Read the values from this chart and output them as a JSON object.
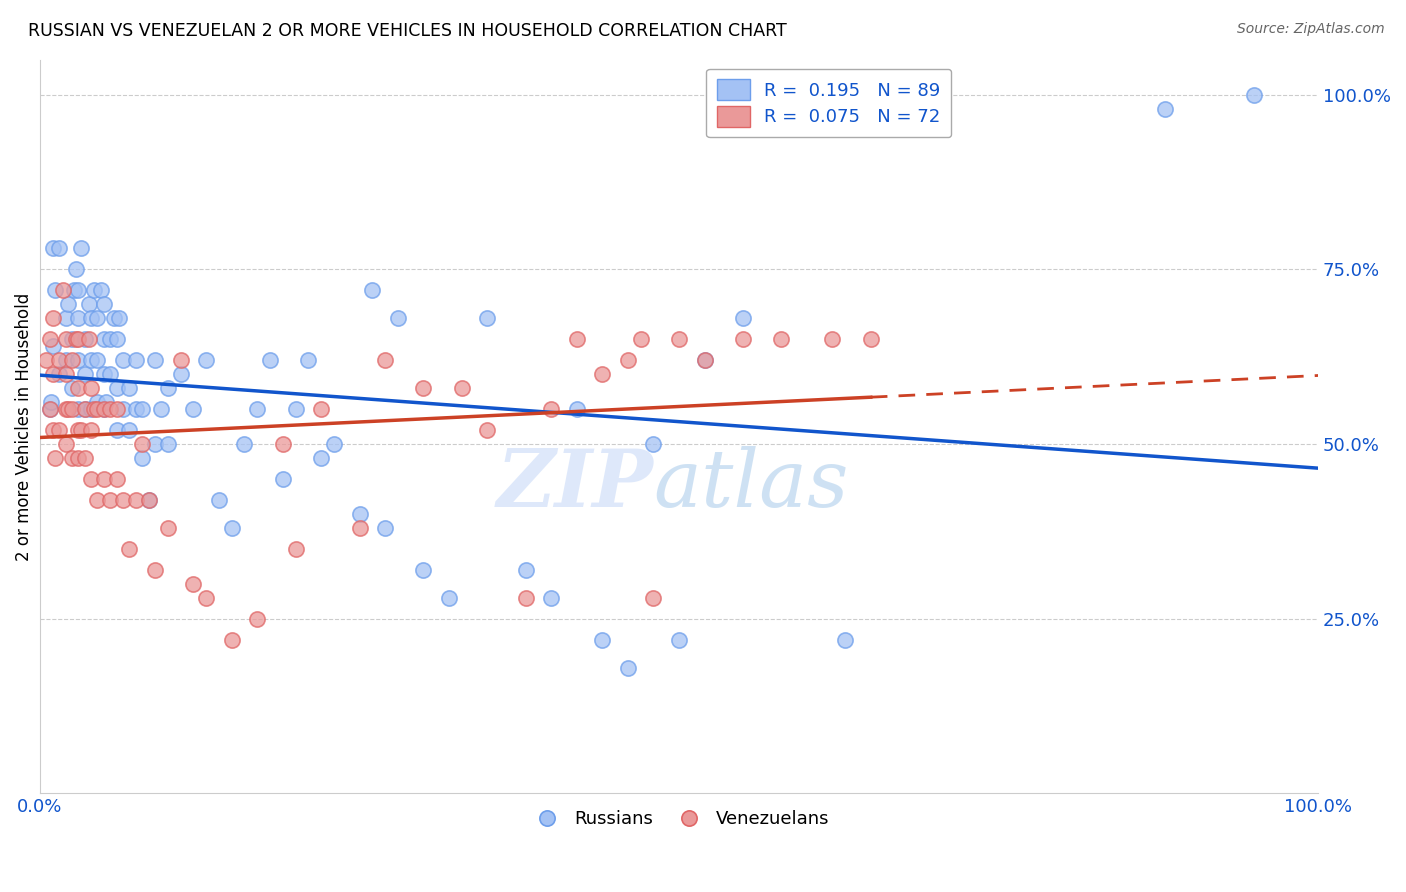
{
  "title": "RUSSIAN VS VENEZUELAN 2 OR MORE VEHICLES IN HOUSEHOLD CORRELATION CHART",
  "source": "Source: ZipAtlas.com",
  "ylabel": "2 or more Vehicles in Household",
  "watermark_zip": "ZIP",
  "watermark_atlas": "atlas",
  "russian_color": "#a4c2f4",
  "russian_edge_color": "#6d9eeb",
  "venezuelan_color": "#ea9999",
  "venezuelan_edge_color": "#e06666",
  "russian_line_color": "#1155cc",
  "venezuelan_line_color": "#cc4125",
  "russian_R": 0.195,
  "venezuelan_R": 0.075,
  "russian_N": 89,
  "venezuelan_N": 72,
  "russian_x": [
    0.8,
    0.9,
    1.0,
    1.0,
    1.2,
    1.5,
    1.5,
    2.0,
    2.0,
    2.2,
    2.5,
    2.5,
    2.7,
    2.8,
    3.0,
    3.0,
    3.0,
    3.0,
    3.2,
    3.5,
    3.5,
    3.5,
    3.8,
    4.0,
    4.0,
    4.0,
    4.2,
    4.5,
    4.5,
    4.5,
    4.8,
    5.0,
    5.0,
    5.0,
    5.0,
    5.2,
    5.5,
    5.5,
    5.8,
    6.0,
    6.0,
    6.0,
    6.2,
    6.5,
    6.5,
    7.0,
    7.0,
    7.5,
    7.5,
    8.0,
    8.0,
    8.5,
    9.0,
    9.0,
    9.5,
    10.0,
    10.0,
    11.0,
    12.0,
    13.0,
    14.0,
    15.0,
    16.0,
    17.0,
    18.0,
    19.0,
    20.0,
    21.0,
    22.0,
    23.0,
    25.0,
    26.0,
    27.0,
    28.0,
    30.0,
    32.0,
    35.0,
    38.0,
    40.0,
    42.0,
    44.0,
    46.0,
    48.0,
    50.0,
    52.0,
    55.0,
    63.0,
    88.0,
    95.0
  ],
  "russian_y": [
    55.0,
    56.0,
    64.0,
    78.0,
    72.0,
    60.0,
    78.0,
    62.0,
    68.0,
    70.0,
    58.0,
    65.0,
    72.0,
    75.0,
    55.0,
    62.0,
    68.0,
    72.0,
    78.0,
    55.0,
    60.0,
    65.0,
    70.0,
    55.0,
    62.0,
    68.0,
    72.0,
    56.0,
    62.0,
    68.0,
    72.0,
    55.0,
    60.0,
    65.0,
    70.0,
    56.0,
    60.0,
    65.0,
    68.0,
    52.0,
    58.0,
    65.0,
    68.0,
    55.0,
    62.0,
    52.0,
    58.0,
    55.0,
    62.0,
    48.0,
    55.0,
    42.0,
    50.0,
    62.0,
    55.0,
    50.0,
    58.0,
    60.0,
    55.0,
    62.0,
    42.0,
    38.0,
    50.0,
    55.0,
    62.0,
    45.0,
    55.0,
    62.0,
    48.0,
    50.0,
    40.0,
    72.0,
    38.0,
    68.0,
    32.0,
    28.0,
    68.0,
    32.0,
    28.0,
    55.0,
    22.0,
    18.0,
    50.0,
    22.0,
    62.0,
    68.0,
    22.0,
    98.0,
    100.0
  ],
  "venezuelan_x": [
    0.5,
    0.8,
    0.8,
    1.0,
    1.0,
    1.0,
    1.2,
    1.5,
    1.5,
    1.8,
    2.0,
    2.0,
    2.0,
    2.0,
    2.2,
    2.5,
    2.5,
    2.5,
    2.8,
    3.0,
    3.0,
    3.0,
    3.0,
    3.2,
    3.5,
    3.5,
    3.8,
    4.0,
    4.0,
    4.0,
    4.2,
    4.5,
    4.5,
    5.0,
    5.0,
    5.5,
    5.5,
    6.0,
    6.0,
    6.5,
    7.0,
    7.5,
    8.0,
    8.5,
    9.0,
    10.0,
    11.0,
    12.0,
    13.0,
    15.0,
    17.0,
    19.0,
    20.0,
    22.0,
    25.0,
    27.0,
    30.0,
    33.0,
    35.0,
    38.0,
    40.0,
    42.0,
    44.0,
    46.0,
    47.0,
    48.0,
    50.0,
    52.0,
    55.0,
    58.0,
    62.0,
    65.0
  ],
  "venezuelan_y": [
    62.0,
    55.0,
    65.0,
    52.0,
    60.0,
    68.0,
    48.0,
    52.0,
    62.0,
    72.0,
    50.0,
    55.0,
    60.0,
    65.0,
    55.0,
    48.0,
    55.0,
    62.0,
    65.0,
    48.0,
    52.0,
    58.0,
    65.0,
    52.0,
    48.0,
    55.0,
    65.0,
    45.0,
    52.0,
    58.0,
    55.0,
    42.0,
    55.0,
    45.0,
    55.0,
    42.0,
    55.0,
    45.0,
    55.0,
    42.0,
    35.0,
    42.0,
    50.0,
    42.0,
    32.0,
    38.0,
    62.0,
    30.0,
    28.0,
    22.0,
    25.0,
    50.0,
    35.0,
    55.0,
    38.0,
    62.0,
    58.0,
    58.0,
    52.0,
    28.0,
    55.0,
    65.0,
    60.0,
    62.0,
    65.0,
    28.0,
    65.0,
    62.0,
    65.0,
    65.0,
    65.0,
    65.0
  ]
}
